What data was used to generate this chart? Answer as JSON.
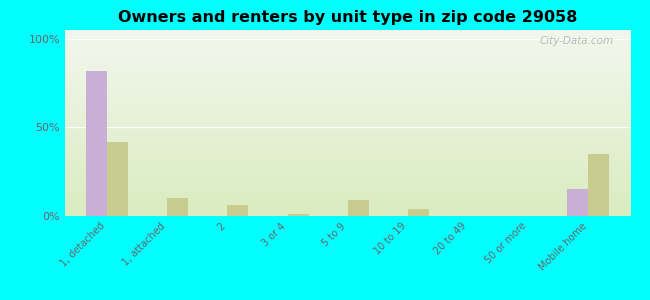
{
  "title": "Owners and renters by unit type in zip code 29058",
  "categories": [
    "1, detached",
    "1, attached",
    "2",
    "3 or 4",
    "5 to 9",
    "10 to 19",
    "20 to 49",
    "50 or more",
    "Mobile home"
  ],
  "owner_values": [
    82,
    0,
    0,
    0,
    0,
    0,
    0,
    0,
    15
  ],
  "renter_values": [
    42,
    10,
    6,
    1,
    9,
    4,
    0,
    0,
    35
  ],
  "owner_color": "#c9aed6",
  "renter_color": "#c8cc8e",
  "background_color": "#00ffff",
  "grad_top": "#f2f7ee",
  "grad_bottom": "#daecc0",
  "ylabel_ticks": [
    "0%",
    "50%",
    "100%"
  ],
  "ytick_vals": [
    0,
    50,
    100
  ],
  "ylim": [
    0,
    105
  ],
  "bar_width": 0.35,
  "watermark": "City-Data.com"
}
